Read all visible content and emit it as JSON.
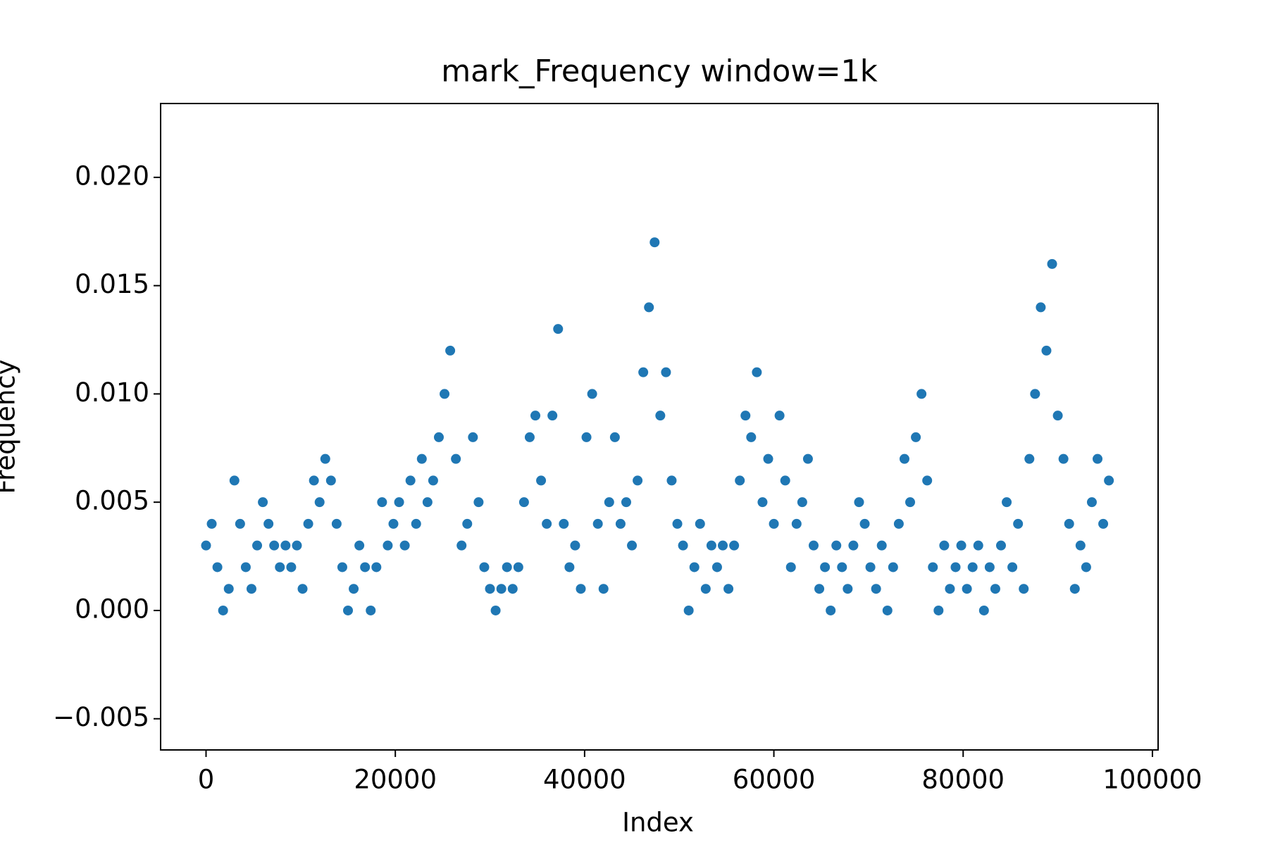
{
  "chart_data": {
    "type": "scatter",
    "title": "mark_Frequency window=1k",
    "x_label": "Index",
    "y_label": "Frequency",
    "color": "#1f77b4",
    "x": [
      0,
      600,
      1200,
      1800,
      2400,
      3000,
      3600,
      4200,
      4800,
      5400,
      6000,
      6600,
      7200,
      7800,
      8400,
      9000,
      9600,
      10200,
      10800,
      11400,
      12000,
      12600,
      13200,
      13800,
      14400,
      15000,
      15600,
      16200,
      16800,
      17400,
      18000,
      18600,
      19200,
      19800,
      20400,
      21000,
      21600,
      22200,
      22800,
      23400,
      24000,
      24600,
      25200,
      25800,
      26400,
      27000,
      27600,
      28200,
      28800,
      29400,
      30000,
      30600,
      31200,
      31800,
      32400,
      33000,
      33600,
      34200,
      34800,
      35400,
      36000,
      36600,
      37200,
      37800,
      38400,
      39000,
      39600,
      40200,
      40800,
      41400,
      42000,
      42600,
      43200,
      43800,
      44400,
      45000,
      45600,
      46200,
      46800,
      47400,
      48000,
      48600,
      49200,
      49800,
      50400,
      51000,
      51600,
      52200,
      52800,
      53400,
      54000,
      54600,
      55200,
      55800,
      56400,
      57000,
      57600,
      58200,
      58800,
      59400,
      60000,
      60600,
      61200,
      61800,
      62400,
      63000,
      63600,
      64200,
      64800,
      65400,
      66000,
      66600,
      67200,
      67800,
      68400,
      69000,
      69600,
      70200,
      70800,
      71400,
      72000,
      72600,
      73200,
      73800,
      74400,
      75000,
      75600,
      76200,
      76800,
      77400,
      78000,
      78600,
      79200,
      79800,
      80400,
      81000,
      81600,
      82200,
      82800,
      83400,
      84000,
      84600,
      85200,
      85800,
      86400,
      87000,
      87600,
      88200,
      88800,
      89400,
      90000,
      90600,
      91200,
      91800,
      92400,
      93000,
      93600,
      94200,
      94800,
      95400
    ],
    "values": [
      0.003,
      0.004,
      0.002,
      0.0,
      0.001,
      0.006,
      0.004,
      0.002,
      0.001,
      0.003,
      0.005,
      0.004,
      0.003,
      0.002,
      0.003,
      0.002,
      0.003,
      0.001,
      0.004,
      0.006,
      0.005,
      0.007,
      0.006,
      0.004,
      0.002,
      0.0,
      0.001,
      0.003,
      0.002,
      0.0,
      0.002,
      0.005,
      0.003,
      0.004,
      0.005,
      0.003,
      0.006,
      0.004,
      0.007,
      0.005,
      0.006,
      0.008,
      0.01,
      0.012,
      0.007,
      0.003,
      0.004,
      0.008,
      0.005,
      0.002,
      0.001,
      0.0,
      0.001,
      0.002,
      0.001,
      0.002,
      0.005,
      0.008,
      0.009,
      0.006,
      0.004,
      0.009,
      0.013,
      0.004,
      0.002,
      0.003,
      0.001,
      0.008,
      0.01,
      0.004,
      0.001,
      0.005,
      0.008,
      0.004,
      0.005,
      0.003,
      0.006,
      0.011,
      0.014,
      0.017,
      0.009,
      0.011,
      0.006,
      0.004,
      0.003,
      0.0,
      0.002,
      0.004,
      0.001,
      0.003,
      0.002,
      0.003,
      0.001,
      0.003,
      0.006,
      0.009,
      0.008,
      0.011,
      0.005,
      0.007,
      0.004,
      0.009,
      0.006,
      0.002,
      0.004,
      0.005,
      0.007,
      0.003,
      0.001,
      0.002,
      0.0,
      0.003,
      0.002,
      0.001,
      0.003,
      0.005,
      0.004,
      0.002,
      0.001,
      0.003,
      0.0,
      0.002,
      0.004,
      0.007,
      0.005,
      0.008,
      0.01,
      0.006,
      0.002,
      0.0,
      0.003,
      0.001,
      0.002,
      0.003,
      0.001,
      0.002,
      0.003,
      0.0,
      0.002,
      0.001,
      0.003,
      0.005,
      0.002,
      0.004,
      0.001,
      0.007,
      0.01,
      0.014,
      0.012,
      0.016,
      0.009,
      0.007,
      0.004,
      0.001,
      0.003,
      0.002,
      0.005,
      0.007,
      0.004,
      0.006
    ],
    "xlim": [
      -4800,
      100600
    ],
    "ylim": [
      -0.00644,
      0.02341
    ],
    "xticks": [
      0,
      20000,
      40000,
      60000,
      80000,
      100000
    ],
    "yticks": [
      {
        "value": -0.005,
        "label": "−0.005"
      },
      {
        "value": 0,
        "label": "0.000"
      },
      0.005,
      {
        "value": 0.01,
        "label": "0.010"
      },
      0.015,
      {
        "value": 0.02,
        "label": "0.020"
      }
    ],
    "grid": false
  }
}
